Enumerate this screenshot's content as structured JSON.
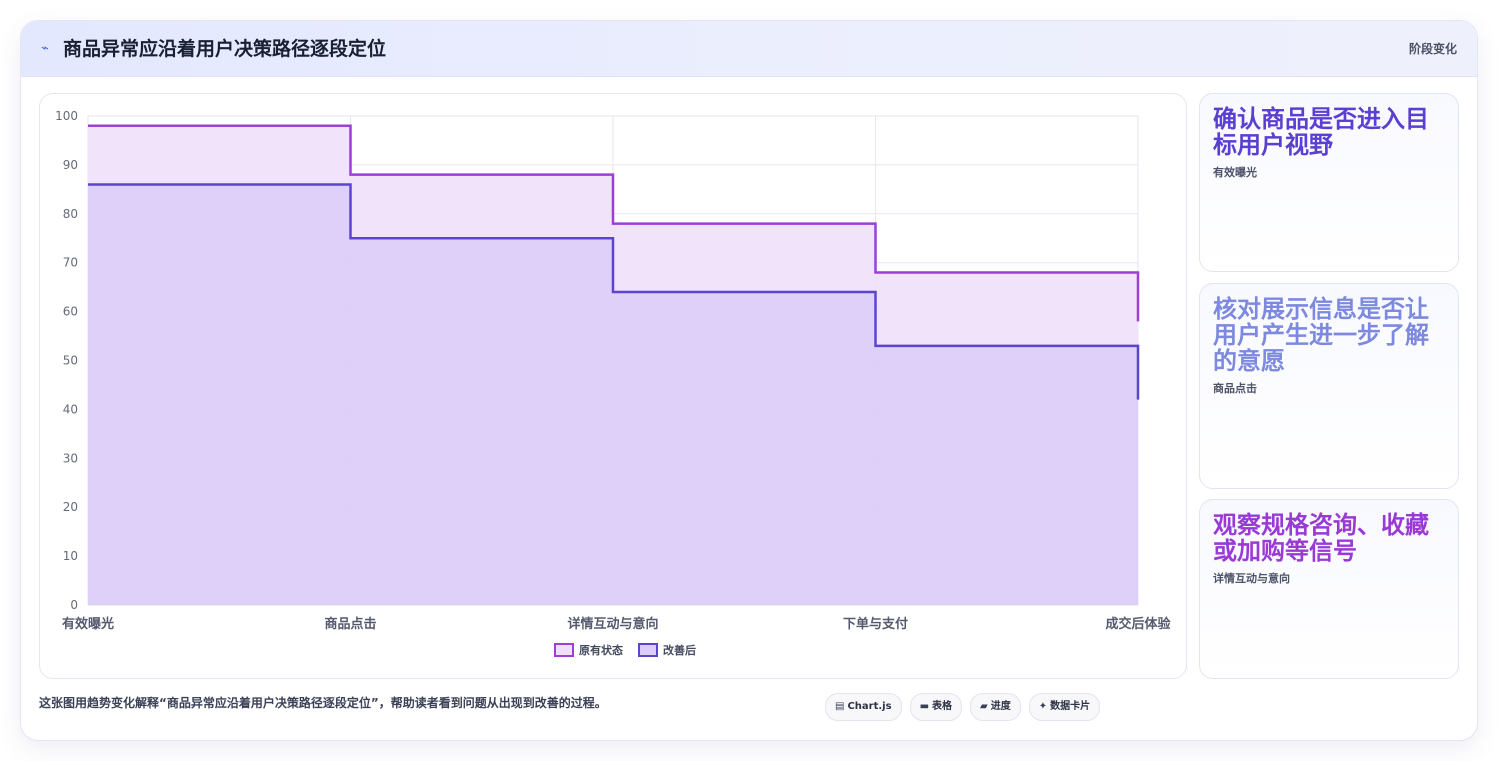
{
  "header": {
    "icon": "sparkline-icon",
    "icon_glyph": "⌁",
    "title": "商品异常应沿着用户决策路径逐段定位",
    "badge": "阶段变化"
  },
  "chart_data": {
    "type": "area",
    "step": "before",
    "categories": [
      "有效曝光",
      "商品点击",
      "详情互动与意向",
      "下单与支付",
      "成交后体验"
    ],
    "series": [
      {
        "name": "原有状态",
        "values": [
          98,
          88,
          78,
          68,
          58
        ],
        "color": "#9b3fd6",
        "fill": "#efe0fa"
      },
      {
        "name": "改善后",
        "values": [
          86,
          75,
          64,
          53,
          42
        ],
        "color": "#5b44d0",
        "fill": "#dccdf8"
      }
    ],
    "ylim": [
      0,
      100
    ],
    "yticks": [
      "0",
      "10",
      "20",
      "30",
      "40",
      "50",
      "60",
      "70",
      "80",
      "90",
      "100"
    ],
    "grid": true,
    "legend": "bottom"
  },
  "cards": [
    {
      "title": "确认商品是否进入目标用户视野",
      "sub": "有效曝光",
      "color": "#5a3fd2"
    },
    {
      "title": "核对展示信息是否让用户产生进一步了解的意愿",
      "sub": "商品点击",
      "color": "#7d89de"
    },
    {
      "title": "观察规格咨询、收藏或加购等信号",
      "sub": "详情互动与意向",
      "color": "#9a3ad4"
    }
  ],
  "footer": {
    "text": "这张图用趋势变化解释“商品异常应沿着用户决策路径逐段定位”，帮助读者看到问题从出现到改善的过程。",
    "chips": [
      {
        "icon": "chart-icon",
        "glyph": "▤",
        "label": "Chart.js"
      },
      {
        "icon": "table-icon",
        "glyph": "▬",
        "label": "表格"
      },
      {
        "icon": "progress-icon",
        "glyph": "▰",
        "label": "进度"
      },
      {
        "icon": "card-icon",
        "glyph": "✦",
        "label": "数据卡片"
      }
    ]
  }
}
